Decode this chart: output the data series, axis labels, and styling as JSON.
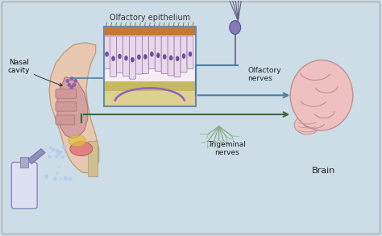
{
  "bg_color": "#ccdde8",
  "border_color": "#aaaaaa",
  "arrow_color_blue": "#4a7fa5",
  "arrow_color_green": "#3a6a3a",
  "inset_border": "#6a8ab0",
  "labels": {
    "nasal_cavity": "Nasal\ncavity",
    "olfactory_epithelium": "Olfactory epithelium",
    "olfactory_nerves": "Olfactory\nnerves",
    "trigeminal_nerves": "Trigeminal\nnerves",
    "brain": "Brain"
  },
  "fig_width": 4.74,
  "fig_height": 2.93,
  "dpi": 100
}
